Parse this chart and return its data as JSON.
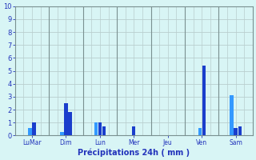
{
  "groups": [
    {
      "label": "LuMar",
      "values": [
        0.6,
        1.0
      ]
    },
    {
      "label": "Dim",
      "values": [
        0.25,
        2.5,
        1.8
      ]
    },
    {
      "label": "Lun",
      "values": [
        1.0,
        1.0,
        0.7
      ]
    },
    {
      "label": "Mer",
      "values": [
        0.7
      ]
    },
    {
      "label": "Jeu",
      "values": []
    },
    {
      "label": "Ven",
      "values": [
        0.55,
        5.4
      ]
    },
    {
      "label": "Sam",
      "values": [
        3.1,
        0.6,
        0.7
      ]
    }
  ],
  "vline_color": "#7a9090",
  "bar_color_dark": "#1a3ecc",
  "bar_color_light": "#3399ff",
  "background_color": "#d8f5f5",
  "grid_color": "#b8cece",
  "text_color": "#2233bb",
  "xlabel": "Précipitations 24h ( mm )",
  "ylim": [
    0,
    10
  ],
  "yticks": [
    0,
    1,
    2,
    3,
    4,
    5,
    6,
    7,
    8,
    9,
    10
  ],
  "figwidth": 3.2,
  "figheight": 2.0,
  "dpi": 100
}
